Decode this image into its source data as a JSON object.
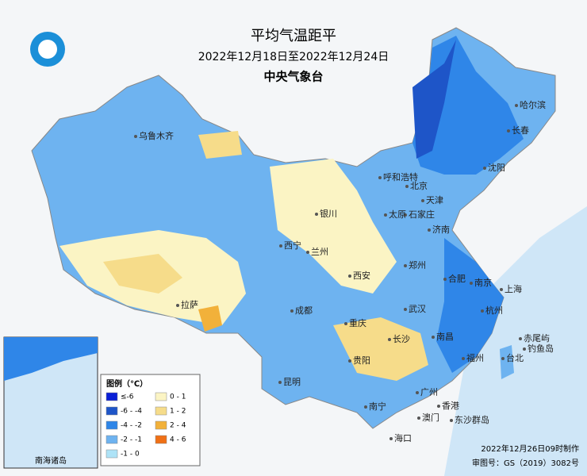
{
  "header": {
    "title": "平均气温距平",
    "subtitle": "2022年12月18日至2022年12月24日",
    "org": "中央气象台"
  },
  "legend": {
    "title": "图例（℃）",
    "items": [
      {
        "label": "≤-6",
        "color": "#0a1fd6"
      },
      {
        "label": "-6 - -4",
        "color": "#1e55c8"
      },
      {
        "label": "-4 - -2",
        "color": "#2f86e8"
      },
      {
        "label": "-2 - -1",
        "color": "#6eb3f0"
      },
      {
        "label": "-1 - 0",
        "color": "#aee3f7"
      },
      {
        "label": "0 - 1",
        "color": "#fbf4c4"
      },
      {
        "label": "1 - 2",
        "color": "#f6dc8a"
      },
      {
        "label": "2 - 4",
        "color": "#f2b13a"
      },
      {
        "label": "4 - 6",
        "color": "#f07016"
      }
    ]
  },
  "cities": [
    "乌鲁木齐",
    "哈尔滨",
    "长春",
    "沈阳",
    "呼和浩特",
    "北京",
    "天津",
    "石家庄",
    "太原",
    "济南",
    "银川",
    "西宁",
    "兰州",
    "郑州",
    "西安",
    "合肥",
    "南京",
    "上海",
    "武汉",
    "杭州",
    "成都",
    "拉萨",
    "重庆",
    "长沙",
    "南昌",
    "福州",
    "台北",
    "贵阳",
    "昆明",
    "南宁",
    "广州",
    "香港",
    "澳门",
    "海口",
    "钓鱼岛",
    "赤尾屿",
    "东沙群岛"
  ],
  "inset": {
    "label": "南海诸岛"
  },
  "footer": {
    "made": "2022年12月26日09时制作",
    "approval": "审图号：GS（2019）3082号"
  }
}
